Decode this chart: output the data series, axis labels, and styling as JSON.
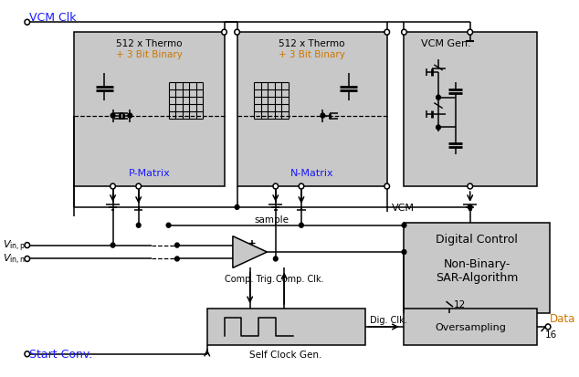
{
  "background_color": "#ffffff",
  "box_fill": "#c8c8c8",
  "box_edge": "#000000",
  "blue_text": "#1a1aff",
  "orange_text": "#cc7700",
  "vcm_clk_label": "VCM Clk",
  "vcm_label": "VCM",
  "vcm_gen_label": "VCM Gen.",
  "p_matrix_label": "P-Matrix",
  "n_matrix_label": "N-Matrix",
  "thermo_label1": "512 x Thermo",
  "thermo_label2": "+ 3 Bit Binary",
  "digital_control_line1": "Digital Control",
  "digital_control_line2": "Non-Binary-",
  "digital_control_line3": "SAR-Algorithm",
  "oversampling_label": "Oversampling",
  "self_clock_label": "Self Clock Gen.",
  "sample_label": "sample",
  "comp_trig_label": "Comp. Trig.",
  "comp_clk_label": "Comp. Clk.",
  "dig_clk_label": "Dig. Clk.",
  "start_conv_label": "Start Conv.",
  "data_label": "Data",
  "num_12": "12",
  "num_16": "16"
}
